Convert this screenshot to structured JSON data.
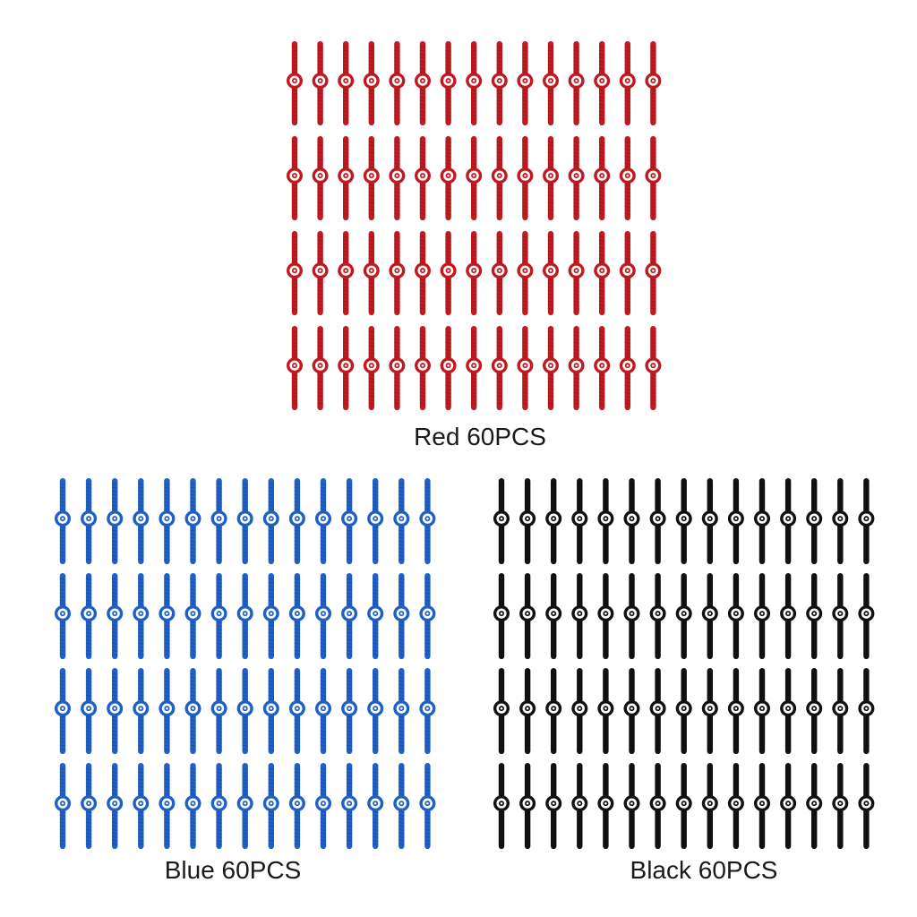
{
  "groups": [
    {
      "id": "red",
      "caption": "Red 60PCS",
      "color": "#c0191f",
      "rows": 4,
      "columns": 15
    },
    {
      "id": "blue",
      "caption": "Blue 60PCS",
      "color": "#1e5fc8",
      "rows": 4,
      "columns": 15
    },
    {
      "id": "black",
      "caption": "Black 60PCS",
      "color": "#111111",
      "rows": 4,
      "columns": 15
    }
  ]
}
